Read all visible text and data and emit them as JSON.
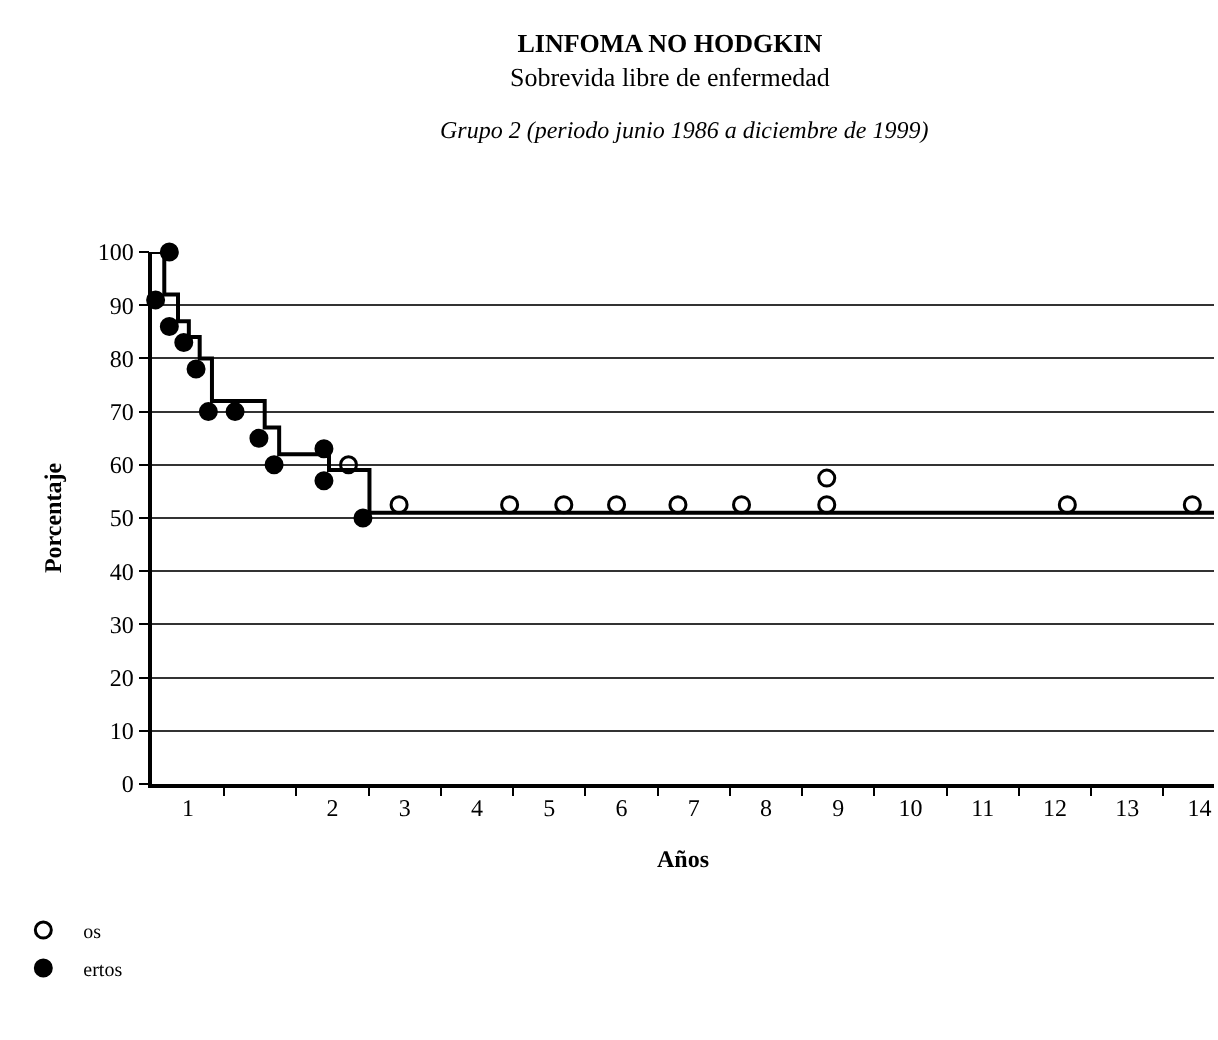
{
  "chart_data": {
    "type": "step",
    "title": "LINFOMA NO HODGKIN",
    "subtitle": "Sobrevida libre de enfermedad",
    "annotations": [
      "Grupo 2 (periodo junio 1986 a diciembre de 1999)"
    ],
    "xlabel": "Años",
    "ylabel": "Porcentaje",
    "series": [
      {
        "color": "#000000",
        "marker": "none",
        "x": [
          0,
          0.17,
          0.36,
          0.51,
          0.66,
          0.83,
          1.56,
          1.76,
          2.45,
          3.01,
          14.7
        ],
        "values": [
          100,
          92,
          87,
          84,
          80,
          72,
          67,
          62,
          59,
          51,
          51
        ]
      },
      {
        "type": "scatter",
        "name": "os",
        "color": "#000000",
        "marker": "circle-open",
        "x": [
          2.72,
          3.42,
          4.95,
          5.7,
          6.43,
          7.28,
          8.16,
          9.34,
          9.34,
          12.67,
          14.4
        ],
        "values": [
          60,
          52.5,
          52.5,
          52.5,
          52.5,
          52.5,
          52.5,
          52.5,
          57.5,
          52.5,
          52.5
        ]
      },
      {
        "type": "scatter",
        "name": "ertos",
        "color": "#000000",
        "marker": "circle",
        "x": [
          0.24,
          0.05,
          0.24,
          0.44,
          0.61,
          0.78,
          1.15,
          1.48,
          1.69,
          2.38,
          2.38,
          2.92
        ],
        "values": [
          100,
          91,
          86,
          83,
          78,
          70,
          70,
          65,
          60,
          63,
          57,
          50
        ]
      }
    ],
    "xlim": [
      0,
      14.7
    ],
    "xticks": [
      {
        "value": 0.5,
        "label": "1"
      },
      {
        "value": 2.5,
        "label": "2"
      },
      {
        "value": 3.5,
        "label": "3"
      },
      {
        "value": 4.5,
        "label": "4"
      },
      {
        "value": 5.5,
        "label": "5"
      },
      {
        "value": 6.5,
        "label": "6"
      },
      {
        "value": 7.5,
        "label": "7"
      },
      {
        "value": 8.5,
        "label": "8"
      },
      {
        "value": 9.5,
        "label": "9"
      },
      {
        "value": 10.5,
        "label": "10"
      },
      {
        "value": 11.5,
        "label": "11"
      },
      {
        "value": 12.5,
        "label": "12"
      },
      {
        "value": 13.5,
        "label": "13"
      },
      {
        "value": 14.5,
        "label": "14"
      },
      {
        "value": 1,
        "label": null
      },
      {
        "value": 2,
        "label": null
      },
      {
        "value": 3,
        "label": null
      },
      {
        "value": 4,
        "label": null
      },
      {
        "value": 5,
        "label": null
      },
      {
        "value": 6,
        "label": null
      },
      {
        "value": 7,
        "label": null
      },
      {
        "value": 8,
        "label": null
      },
      {
        "value": 9,
        "label": null
      },
      {
        "value": 10,
        "label": null
      },
      {
        "value": 11,
        "label": null
      },
      {
        "value": 12,
        "label": null
      },
      {
        "value": 13,
        "label": null
      },
      {
        "value": 14,
        "label": null
      }
    ],
    "ylim": [
      0,
      100
    ],
    "yticks": [
      0,
      10,
      20,
      30,
      40,
      50,
      60,
      70,
      80,
      90,
      100
    ],
    "grid": "y",
    "legend": "bottom left"
  }
}
